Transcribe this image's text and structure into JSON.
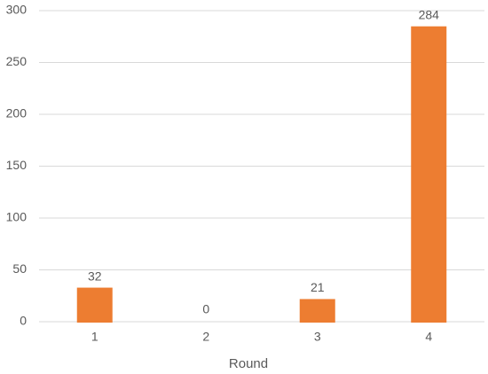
{
  "chart_data": {
    "type": "bar",
    "x_label": "Round",
    "categories": [
      "1",
      "2",
      "3",
      "4"
    ],
    "values": [
      32,
      0,
      21,
      284
    ],
    "color": "#ed7d31",
    "ylim": [
      0,
      300
    ],
    "yticks": [
      0,
      50,
      100,
      150,
      200,
      250,
      300
    ],
    "grid": true,
    "data_labels": true
  }
}
